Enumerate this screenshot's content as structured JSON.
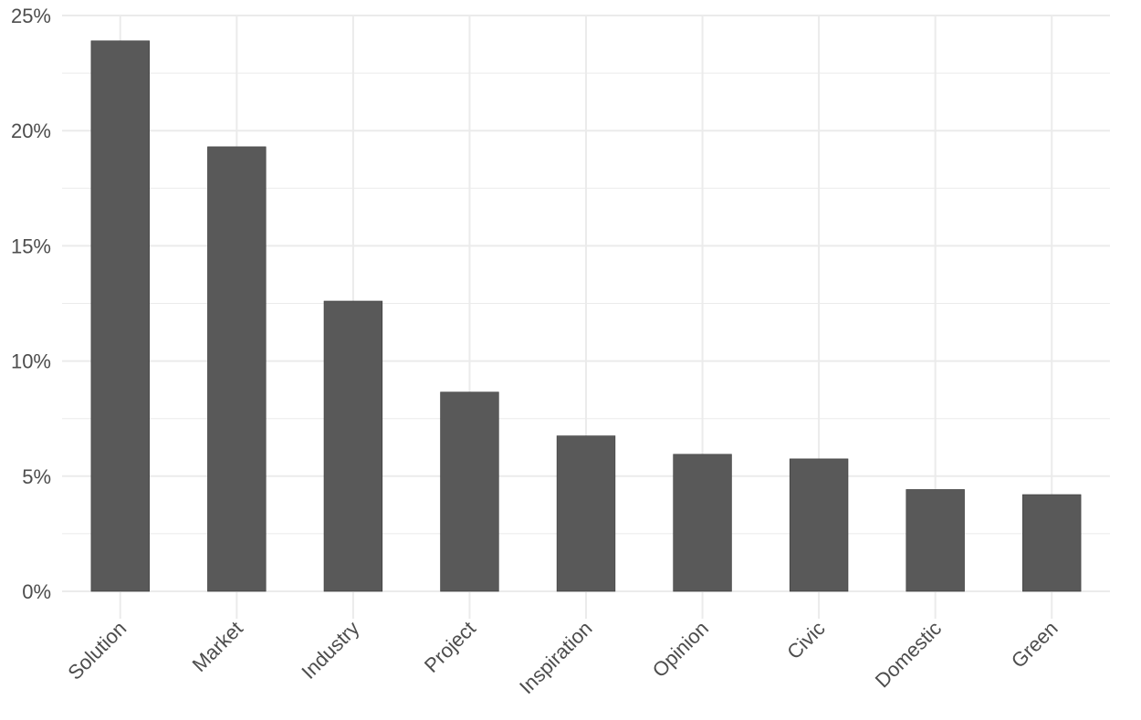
{
  "chart_data": {
    "type": "bar",
    "title": "",
    "xlabel": "",
    "ylabel": "",
    "categories": [
      "Solution",
      "Market",
      "Industry",
      "Project",
      "Inspiration",
      "Opinion",
      "Civic",
      "Domestic",
      "Green"
    ],
    "values": [
      23.9,
      19.3,
      12.6,
      8.65,
      6.75,
      5.95,
      5.75,
      4.42,
      4.2
    ],
    "value_unit": "percent",
    "ylim": [
      0,
      25
    ],
    "y_ticks": [
      0,
      5,
      10,
      15,
      20,
      25
    ],
    "y_tick_labels": [
      "0%",
      "5%",
      "10%",
      "15%",
      "20%",
      "25%"
    ],
    "grid": true,
    "legend": "none",
    "colors": {
      "bar": "#595959",
      "grid": "#ebebeb",
      "tick_text": "#4d4d4d",
      "background": "#ffffff"
    }
  }
}
